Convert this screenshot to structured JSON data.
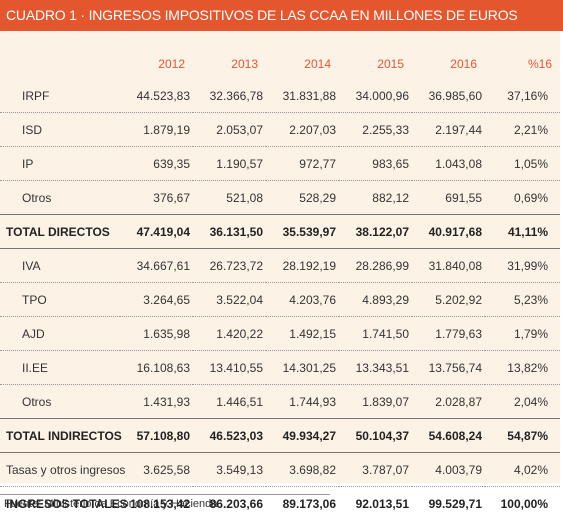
{
  "title": "CUADRO 1 · INGRESOS IMPOSITIVOS DE LAS CCAA EN MILLONES DE EUROS",
  "columns": [
    "2012",
    "2013",
    "2014",
    "2015",
    "2016",
    "%16"
  ],
  "rows": [
    {
      "label": "IRPF",
      "type": "item",
      "values": [
        "44.523,83",
        "32.366,78",
        "31.831,88",
        "34.000,96",
        "36.985,60",
        "37,16%"
      ]
    },
    {
      "label": "ISD",
      "type": "item",
      "values": [
        "1.879,19",
        "2.053,07",
        "2.207,03",
        "2.255,33",
        "2.197,44",
        "2,21%"
      ]
    },
    {
      "label": "IP",
      "type": "item",
      "values": [
        "639,35",
        "1.190,57",
        "972,77",
        "983,65",
        "1.043,08",
        "1,05%"
      ]
    },
    {
      "label": "Otros",
      "type": "item",
      "values": [
        "376,67",
        "521,08",
        "528,29",
        "882,12",
        "691,55",
        "0,69%"
      ]
    },
    {
      "label": "TOTAL DIRECTOS",
      "type": "total",
      "values": [
        "47.419,04",
        "36.131,50",
        "35.539,97",
        "38.122,07",
        "40.917,68",
        "41,11%"
      ]
    },
    {
      "label": "IVA",
      "type": "item",
      "values": [
        "34.667,61",
        "26.723,72",
        "28.192,19",
        "28.286,99",
        "31.840,08",
        "31,99%"
      ]
    },
    {
      "label": "TPO",
      "type": "item",
      "values": [
        "3.264,65",
        "3.522,04",
        "4.203,76",
        "4.893,29",
        "5.202,92",
        "5,23%"
      ]
    },
    {
      "label": "AJD",
      "type": "item",
      "values": [
        "1.635,98",
        "1.420,22",
        "1.492,15",
        "1.741,50",
        "1.779,63",
        "1,79%"
      ]
    },
    {
      "label": "II.EE",
      "type": "item",
      "values": [
        "16.108,63",
        "13.410,55",
        "14.301,25",
        "13.343,51",
        "13.756,74",
        "13,82%"
      ]
    },
    {
      "label": "Otros",
      "type": "item",
      "values": [
        "1.431,93",
        "1.446,51",
        "1.744,93",
        "1.839,07",
        "2.028,87",
        "2,04%"
      ]
    },
    {
      "label": "TOTAL INDIRECTOS",
      "type": "total",
      "values": [
        "57.108,80",
        "46.523,03",
        "49.934,27",
        "50.104,37",
        "54.608,24",
        "54,87%"
      ]
    },
    {
      "label": "Tasas y otros ingresos",
      "type": "flat",
      "values": [
        "3.625,58",
        "3.549,13",
        "3.698,82",
        "3.787,07",
        "4.003,79",
        "4,02%"
      ]
    },
    {
      "label": "INGRESOS TOTALES",
      "type": "grand",
      "values": [
        "108.153,42",
        "86.203,66",
        "89.173,06",
        "92.013,51",
        "99.529,71",
        "100,00%"
      ]
    }
  ],
  "source": "Fuente: Ministerio de Economía y Hacienda",
  "colors": {
    "accent": "#e4572e",
    "panel_background": "#fdf2e6"
  }
}
